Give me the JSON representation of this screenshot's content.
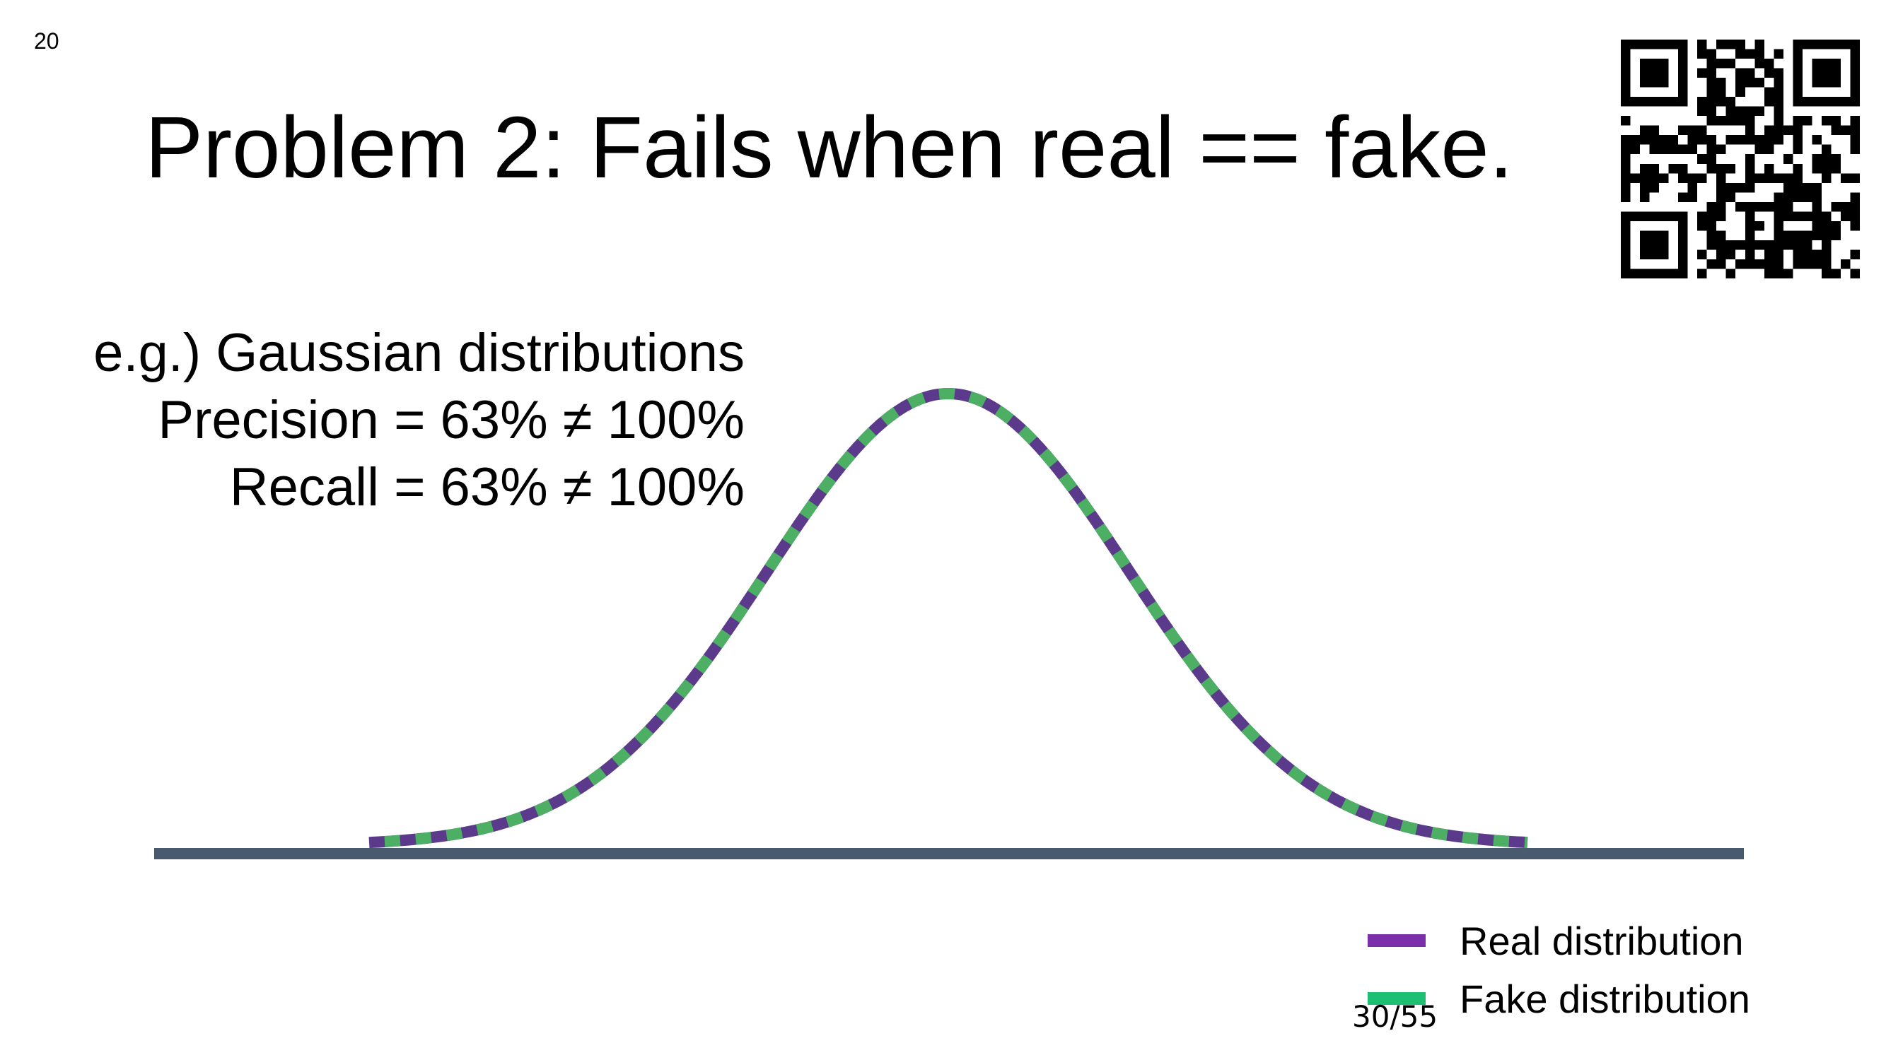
{
  "slide_number": "20",
  "title": "Problem 2: Fails when real == fake.",
  "annotations": {
    "line1": "e.g.) Gaussian distributions",
    "line2": "Precision = 63% ≠ 100%",
    "line3": "Recall = 63% ≠ 100%"
  },
  "chart_data": {
    "type": "line",
    "title": "",
    "xlabel": "",
    "ylabel": "",
    "series": [
      {
        "name": "Real distribution",
        "distribution": "gaussian",
        "mean": 0,
        "std": 1,
        "color": "#7B2FA8"
      },
      {
        "name": "Fake distribution",
        "distribution": "gaussian",
        "mean": 0,
        "std": 1,
        "color": "#1DBF73"
      }
    ],
    "xlim": [
      -3.2,
      3.2
    ],
    "grid": false,
    "legend_position": "bottom-right"
  },
  "legend": {
    "real_label": "Real distribution",
    "fake_label": "Fake distribution"
  },
  "colors": {
    "real": "#7B2FA8",
    "fake": "#1DBF73",
    "curve_real_dash": "#5B3A8C",
    "curve_fake_dash": "#4CAF63",
    "axis": "#4A5A6E"
  },
  "qr_icon": "qr-code-icon",
  "page_counter": "30/55"
}
